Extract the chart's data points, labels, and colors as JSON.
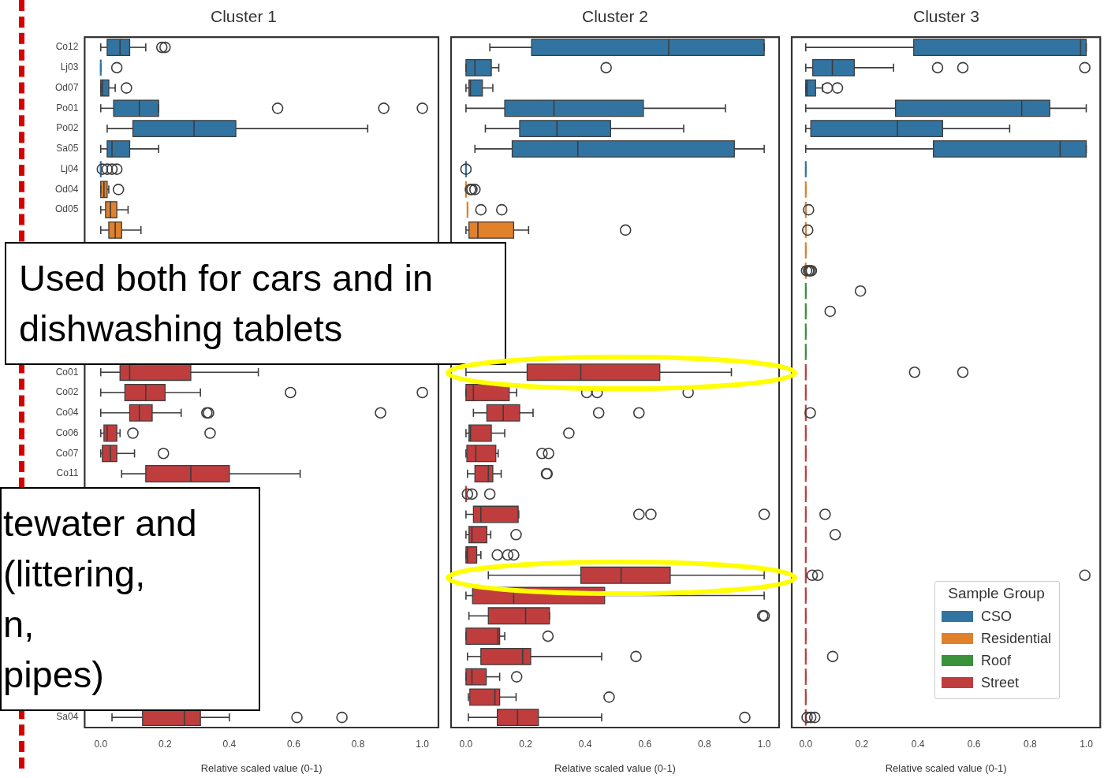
{
  "chart_data": [
    {
      "type": "box",
      "title": "Cluster 1",
      "xlabel": "Relative scaled value (0-1)",
      "orientation": "horizontal",
      "grid": false,
      "categories": [
        "Co12",
        "Lj03",
        "Od07",
        "Po01",
        "Po02",
        "Sa05",
        "Lj04",
        "Od04",
        "Od05",
        null,
        null,
        null,
        null,
        null,
        null,
        null,
        "Co01",
        "Co02",
        "Co04",
        "Co06",
        "Co07",
        "Co11",
        null,
        null,
        null,
        null,
        null,
        null,
        null,
        null,
        null,
        null,
        null,
        "Sa04"
      ],
      "xlim": [
        -0.05,
        1.05
      ],
      "xticks": [
        {
          "value": 0,
          "label": "0.0"
        },
        {
          "value": 0.2,
          "label": "0.2"
        },
        {
          "value": 0.4,
          "label": "0.4"
        },
        {
          "value": 0.6,
          "label": "0.6"
        },
        {
          "value": 0.8,
          "label": "0.8"
        },
        {
          "value": 1,
          "label": "1.0"
        }
      ],
      "annotations": [
        "Used both for cars and in dishwashing tablets",
        "tewater and\n(littering,\nn,\npipes)"
      ],
      "series": [
        {
          "color": "#3274a1",
          "boxes": [
            {
              "low": 0,
              "q1": 0.02,
              "median": 0.06,
              "q3": 0.09,
              "high": 0.14,
              "outliers": [
                0.19,
                0.2
              ]
            },
            {
              "low": 0,
              "q1": 0,
              "median": 0,
              "q3": 0,
              "high": 0,
              "outliers": [
                0.05
              ]
            },
            {
              "low": 0,
              "q1": 0,
              "median": 0.005,
              "q3": 0.025,
              "high": 0.045,
              "outliers": [
                0.08
              ]
            },
            {
              "low": 0,
              "q1": 0.04,
              "median": 0.12,
              "q3": 0.18,
              "high": 0.18,
              "outliers": [
                0.55,
                0.88,
                1.0
              ]
            },
            {
              "low": 0.02,
              "q1": 0.1,
              "median": 0.29,
              "q3": 0.42,
              "high": 0.83
            },
            {
              "low": 0,
              "q1": 0.02,
              "median": 0.035,
              "q3": 0.09,
              "high": 0.18
            },
            {
              "low": 0,
              "q1": 0,
              "median": 0,
              "q3": 0,
              "high": 0,
              "outliers": [
                0.005,
                0.02,
                0.035,
                0.05
              ]
            },
            null,
            null,
            null,
            null,
            null,
            null,
            null,
            null,
            null,
            null,
            null,
            null,
            null,
            null,
            null,
            null,
            null,
            null,
            null,
            null,
            null,
            null,
            null,
            null,
            null,
            null,
            null
          ]
        },
        {
          "color": "#e1812c",
          "boxes": [
            null,
            null,
            null,
            null,
            null,
            null,
            null,
            {
              "low": 0,
              "q1": 0,
              "median": 0.01,
              "q3": 0.02,
              "high": 0.025,
              "outliers": [
                0.055
              ]
            },
            {
              "low": 0,
              "q1": 0.015,
              "median": 0.03,
              "q3": 0.05,
              "high": 0.085
            },
            {
              "low": 0,
              "q1": 0.025,
              "median": 0.045,
              "q3": 0.065,
              "high": 0.125
            },
            null,
            null,
            null,
            null,
            null,
            null,
            null,
            null,
            null,
            null,
            null,
            null,
            null,
            null,
            null,
            null,
            null,
            null,
            null,
            null,
            null,
            null,
            null,
            null
          ]
        },
        {
          "color": "#c03d3e",
          "boxes": [
            null,
            null,
            null,
            null,
            null,
            null,
            null,
            null,
            null,
            null,
            null,
            null,
            null,
            null,
            null,
            null,
            {
              "low": 0,
              "q1": 0.06,
              "median": 0.09,
              "q3": 0.28,
              "high": 0.49
            },
            {
              "low": 0,
              "q1": 0.075,
              "median": 0.14,
              "q3": 0.2,
              "high": 0.31,
              "outliers": [
                0.59,
                1.0
              ]
            },
            {
              "low": 0,
              "q1": 0.09,
              "median": 0.12,
              "q3": 0.16,
              "high": 0.25,
              "outliers": [
                0.33,
                0.335,
                0.87
              ]
            },
            {
              "low": 0,
              "q1": 0.01,
              "median": 0.02,
              "q3": 0.05,
              "high": 0.06,
              "outliers": [
                0.1,
                0.34
              ]
            },
            {
              "low": 0,
              "q1": 0.005,
              "median": 0.03,
              "q3": 0.05,
              "high": 0.105,
              "outliers": [
                0.195
              ]
            },
            {
              "low": 0.065,
              "q1": 0.14,
              "median": 0.28,
              "q3": 0.4,
              "high": 0.62
            },
            null,
            null,
            null,
            null,
            null,
            null,
            null,
            null,
            null,
            null,
            null,
            {
              "low": 0.035,
              "q1": 0.13,
              "median": 0.26,
              "q3": 0.31,
              "high": 0.4,
              "outliers": [
                0.61,
                0.75
              ]
            }
          ]
        }
      ]
    },
    {
      "type": "box",
      "title": "Cluster 2",
      "xlabel": "Relative scaled value (0-1)",
      "orientation": "horizontal",
      "grid": false,
      "tick_labels": "x",
      "categories": [
        null,
        null,
        null,
        null,
        null,
        null,
        null,
        null,
        null,
        null,
        null,
        null,
        null,
        null,
        null,
        null,
        null,
        null,
        null,
        null,
        null,
        null,
        null,
        null,
        null,
        null,
        null,
        null,
        null,
        null,
        null,
        null,
        null,
        null
      ],
      "xlim": [
        -0.05,
        1.05
      ],
      "xticks": [
        {
          "value": 0,
          "label": "0.0"
        },
        {
          "value": 0.2,
          "label": "0.2"
        },
        {
          "value": 0.4,
          "label": "0.4"
        },
        {
          "value": 0.6,
          "label": "0.6"
        },
        {
          "value": 0.8,
          "label": "0.8"
        },
        {
          "value": 1,
          "label": "1.0"
        }
      ],
      "series": [
        {
          "color": "#3274a1",
          "boxes": [
            {
              "low": 0.08,
              "q1": 0.22,
              "median": 0.68,
              "q3": 1.0,
              "high": 1.0
            },
            {
              "low": 0,
              "q1": 0,
              "median": 0.03,
              "q3": 0.085,
              "high": 0.11,
              "outliers": [
                0.47
              ]
            },
            {
              "low": 0,
              "q1": 0.01,
              "median": 0.015,
              "q3": 0.055,
              "high": 0.09
            },
            {
              "low": 0,
              "q1": 0.13,
              "median": 0.295,
              "q3": 0.595,
              "high": 0.87
            },
            {
              "low": 0.065,
              "q1": 0.18,
              "median": 0.305,
              "q3": 0.485,
              "high": 0.73
            },
            {
              "low": 0.03,
              "q1": 0.155,
              "median": 0.375,
              "q3": 0.9,
              "high": 1.0
            },
            {
              "low": 0,
              "q1": 0,
              "median": 0,
              "q3": 0,
              "high": 0,
              "outliers": [
                0
              ]
            },
            null,
            null,
            null,
            null,
            null,
            null,
            null,
            null,
            null,
            null,
            null,
            null,
            null,
            null,
            null,
            null,
            null,
            null,
            null,
            null,
            null,
            null,
            null,
            null,
            null,
            null,
            null
          ]
        },
        {
          "color": "#e1812c",
          "boxes": [
            null,
            null,
            null,
            null,
            null,
            null,
            null,
            {
              "low": 0,
              "q1": 0,
              "median": 0,
              "q3": 0,
              "high": 0,
              "outliers": [
                0.015,
                0.02,
                0.03
              ]
            },
            {
              "low": 0.005,
              "q1": 0.005,
              "median": 0.005,
              "q3": 0.005,
              "high": 0.005,
              "outliers": [
                0.05,
                0.12
              ]
            },
            {
              "low": 0,
              "q1": 0.01,
              "median": 0.04,
              "q3": 0.16,
              "high": 0.21,
              "outliers": [
                0.535
              ]
            },
            null,
            null,
            null,
            null,
            null,
            null,
            null,
            null,
            null,
            null,
            null,
            null,
            null,
            null,
            null,
            null,
            null,
            null,
            null,
            null,
            null,
            null,
            null,
            null
          ]
        },
        {
          "color": "#c03d3e",
          "boxes": [
            null,
            null,
            null,
            null,
            null,
            null,
            null,
            null,
            null,
            null,
            null,
            null,
            null,
            null,
            null,
            null,
            {
              "low": 0,
              "q1": 0.205,
              "median": 0.385,
              "q3": 0.65,
              "high": 0.89
            },
            {
              "low": 0,
              "q1": 0,
              "median": 0.025,
              "q3": 0.145,
              "high": 0.17,
              "outliers": [
                0.405,
                0.44,
                0.745
              ]
            },
            {
              "low": 0.025,
              "q1": 0.07,
              "median": 0.125,
              "q3": 0.18,
              "high": 0.225,
              "outliers": [
                0.445,
                0.58
              ]
            },
            {
              "low": 0,
              "q1": 0.01,
              "median": 0.015,
              "q3": 0.085,
              "high": 0.13,
              "outliers": [
                0.345
              ]
            },
            {
              "low": 0,
              "q1": 0.003,
              "median": 0.033,
              "q3": 0.1,
              "high": 0.108,
              "outliers": [
                0.255,
                0.277
              ]
            },
            {
              "low": 0.005,
              "q1": 0.03,
              "median": 0.075,
              "q3": 0.09,
              "high": 0.118,
              "outliers": [
                0.27,
                0.272
              ]
            },
            {
              "low": 0,
              "q1": 0,
              "median": 0,
              "q3": 0,
              "high": 0,
              "outliers": [
                0.005,
                0.02,
                0.08
              ]
            },
            {
              "low": 0,
              "q1": 0.025,
              "median": 0.05,
              "q3": 0.175,
              "high": 0.177,
              "outliers": [
                0.58,
                0.62,
                1.0
              ]
            },
            {
              "low": 0,
              "q1": 0.01,
              "median": 0.02,
              "q3": 0.07,
              "high": 0.083,
              "outliers": [
                0.168
              ]
            },
            {
              "low": 0,
              "q1": 0,
              "median": 0.005,
              "q3": 0.036,
              "high": 0.05,
              "outliers": [
                0.105,
                0.14,
                0.16
              ]
            },
            {
              "low": 0.075,
              "q1": 0.385,
              "median": 0.52,
              "q3": 0.685,
              "high": 1.0
            },
            {
              "low": 0,
              "q1": 0.022,
              "median": 0.16,
              "q3": 0.465,
              "high": 1.0
            },
            {
              "low": 0.01,
              "q1": 0.075,
              "median": 0.2,
              "q3": 0.28,
              "high": 0.28,
              "outliers": [
                0.995,
                1.0
              ]
            },
            {
              "low": 0,
              "q1": 0,
              "median": 0.107,
              "q3": 0.113,
              "high": 0.13,
              "outliers": [
                0.275
              ]
            },
            {
              "low": 0.005,
              "q1": 0.05,
              "median": 0.19,
              "q3": 0.217,
              "high": 0.455,
              "outliers": [
                0.57
              ]
            },
            {
              "low": 0,
              "q1": 0,
              "median": 0.02,
              "q3": 0.068,
              "high": 0.113,
              "outliers": [
                0.17
              ]
            },
            {
              "low": 0.008,
              "q1": 0.013,
              "median": 0.097,
              "q3": 0.113,
              "high": 0.168,
              "outliers": [
                0.48
              ]
            },
            {
              "low": 0.008,
              "q1": 0.105,
              "median": 0.173,
              "q3": 0.243,
              "high": 0.455,
              "outliers": [
                0.935
              ]
            }
          ]
        }
      ]
    },
    {
      "type": "box",
      "title": "Cluster 3",
      "xlabel": "Relative scaled value (0-1)",
      "orientation": "horizontal",
      "grid": false,
      "tick_labels": "x",
      "legend": "bottom right",
      "legend_title": "Sample Group",
      "categories": [
        null,
        null,
        null,
        null,
        null,
        null,
        null,
        null,
        null,
        null,
        null,
        null,
        null,
        null,
        null,
        null,
        null,
        null,
        null,
        null,
        null,
        null,
        null,
        null,
        null,
        null,
        null,
        null,
        null,
        null,
        null,
        null,
        null,
        null
      ],
      "xlim": [
        -0.05,
        1.05
      ],
      "xticks": [
        {
          "value": 0,
          "label": "0.0"
        },
        {
          "value": 0.2,
          "label": "0.2"
        },
        {
          "value": 0.4,
          "label": "0.4"
        },
        {
          "value": 0.6,
          "label": "0.6"
        },
        {
          "value": 0.8,
          "label": "0.8"
        },
        {
          "value": 1,
          "label": "1.0"
        }
      ],
      "series": [
        {
          "name": "CSO",
          "color": "#3274a1",
          "boxes": [
            {
              "low": 0,
              "q1": 0.385,
              "median": 0.98,
              "q3": 1.0,
              "high": 1.0
            },
            {
              "low": 0,
              "q1": 0.025,
              "median": 0.095,
              "q3": 0.173,
              "high": 0.313,
              "outliers": [
                0.47,
                0.56,
                0.995
              ]
            },
            {
              "low": 0,
              "q1": 0,
              "median": 0.005,
              "q3": 0.035,
              "high": 0.06,
              "outliers": [
                0.077,
                0.113
              ]
            },
            {
              "low": 0,
              "q1": 0.32,
              "median": 0.77,
              "q3": 0.87,
              "high": 1.0
            },
            {
              "low": 0,
              "q1": 0.018,
              "median": 0.327,
              "q3": 0.488,
              "high": 0.727
            },
            {
              "low": 0,
              "q1": 0.455,
              "median": 0.907,
              "q3": 1.0,
              "high": 1.0
            },
            {
              "low": 0,
              "q1": 0,
              "median": 0,
              "q3": 0,
              "high": 0
            },
            null,
            null,
            null,
            null,
            null,
            null,
            null,
            null,
            null,
            null,
            null,
            null,
            null,
            null,
            null,
            null,
            null,
            null,
            null,
            null,
            null,
            null,
            null,
            null,
            null,
            null,
            null
          ]
        },
        {
          "name": "Residential",
          "color": "#e1812c",
          "boxes": [
            null,
            null,
            null,
            null,
            null,
            null,
            null,
            {
              "low": 0,
              "q1": 0,
              "median": 0,
              "q3": 0,
              "high": 0
            },
            {
              "low": 0,
              "q1": 0,
              "median": 0,
              "q3": 0,
              "high": 0,
              "outliers": [
                0.01
              ]
            },
            {
              "low": 0,
              "q1": 0,
              "median": 0,
              "q3": 0,
              "high": 0,
              "outliers": [
                0.007
              ]
            },
            {
              "low": 0,
              "q1": 0,
              "median": 0,
              "q3": 0,
              "high": 0
            },
            {
              "low": 0,
              "q1": 0,
              "median": 0,
              "q3": 0,
              "high": 0,
              "outliers": [
                0.003,
                0.01,
                0.015,
                0.02
              ]
            },
            null,
            null,
            null,
            null,
            null,
            null,
            null,
            null,
            null,
            null,
            null,
            null,
            null,
            null,
            null,
            null,
            null,
            null,
            null,
            null,
            null,
            null
          ]
        },
        {
          "name": "Roof",
          "color": "#3a923a",
          "boxes": [
            null,
            null,
            null,
            null,
            null,
            null,
            null,
            null,
            null,
            null,
            null,
            null,
            {
              "low": 0,
              "q1": 0,
              "median": 0,
              "q3": 0,
              "high": 0,
              "outliers": [
                0.195
              ]
            },
            {
              "low": 0,
              "q1": 0,
              "median": 0,
              "q3": 0,
              "high": 0,
              "outliers": [
                0.087
              ]
            },
            {
              "low": 0,
              "q1": 0,
              "median": 0,
              "q3": 0,
              "high": 0
            },
            {
              "low": 0,
              "q1": 0,
              "median": 0,
              "q3": 0,
              "high": 0
            },
            null,
            null,
            null,
            null,
            null,
            null,
            null,
            null,
            null,
            null,
            null,
            null,
            null,
            null,
            null,
            null,
            null,
            null
          ]
        },
        {
          "name": "Street",
          "color": "#c03d3e",
          "boxes": [
            null,
            null,
            null,
            null,
            null,
            null,
            null,
            null,
            null,
            null,
            null,
            null,
            null,
            null,
            null,
            null,
            {
              "low": 0,
              "q1": 0,
              "median": 0,
              "q3": 0,
              "high": 0,
              "outliers": [
                0.388,
                0.56
              ]
            },
            {
              "low": 0,
              "q1": 0,
              "median": 0,
              "q3": 0,
              "high": 0
            },
            {
              "low": 0,
              "q1": 0,
              "median": 0,
              "q3": 0,
              "high": 0,
              "outliers": [
                0.016
              ]
            },
            {
              "low": 0,
              "q1": 0,
              "median": 0,
              "q3": 0,
              "high": 0
            },
            {
              "low": 0,
              "q1": 0,
              "median": 0,
              "q3": 0,
              "high": 0
            },
            {
              "low": 0,
              "q1": 0,
              "median": 0,
              "q3": 0,
              "high": 0
            },
            {
              "low": 0,
              "q1": 0,
              "median": 0,
              "q3": 0,
              "high": 0
            },
            {
              "low": 0,
              "q1": 0,
              "median": 0,
              "q3": 0,
              "high": 0,
              "outliers": [
                0.069
              ]
            },
            {
              "low": 0,
              "q1": 0,
              "median": 0,
              "q3": 0,
              "high": 0,
              "outliers": [
                0.105
              ]
            },
            {
              "low": 0,
              "q1": 0,
              "median": 0,
              "q3": 0,
              "high": 0
            },
            {
              "low": 0,
              "q1": 0,
              "median": 0,
              "q3": 0,
              "high": 0,
              "outliers": [
                0.023,
                0.043,
                0.995
              ]
            },
            {
              "low": 0,
              "q1": 0,
              "median": 0,
              "q3": 0,
              "high": 0
            },
            {
              "low": 0,
              "q1": 0,
              "median": 0,
              "q3": 0,
              "high": 0
            },
            {
              "low": 0,
              "q1": 0,
              "median": 0,
              "q3": 0,
              "high": 0
            },
            {
              "low": 0,
              "q1": 0,
              "median": 0,
              "q3": 0,
              "high": 0,
              "outliers": [
                0.096
              ]
            },
            {
              "low": 0,
              "q1": 0,
              "median": 0,
              "q3": 0,
              "high": 0
            },
            {
              "low": 0,
              "q1": 0,
              "median": 0,
              "q3": 0,
              "high": 0
            },
            {
              "low": 0,
              "q1": 0,
              "median": 0,
              "q3": 0,
              "high": 0,
              "outliers": [
                0.005,
                0.018,
                0.032
              ]
            }
          ]
        }
      ]
    }
  ]
}
